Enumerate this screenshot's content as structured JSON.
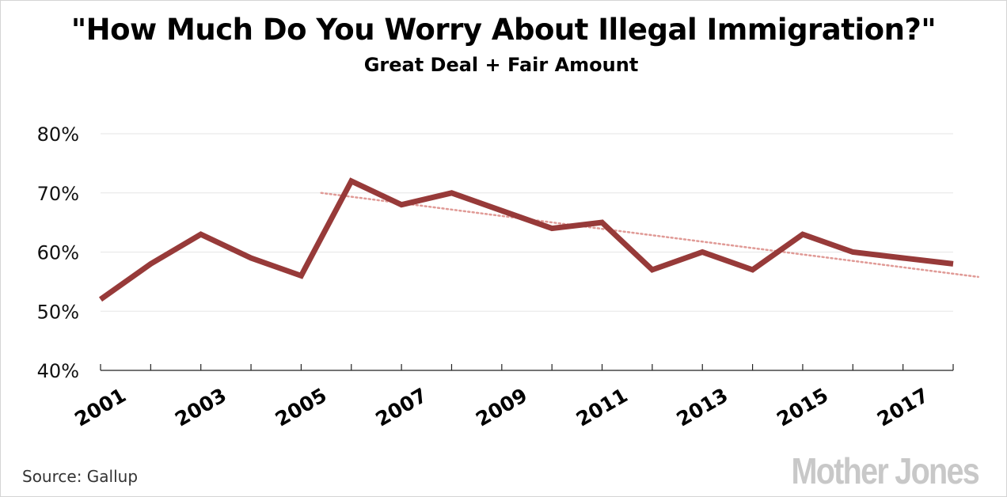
{
  "source": "Source:  Gallup",
  "logo": "Mother Jones",
  "chart_data": {
    "type": "line",
    "title": "\"How Much Do You Worry About Illegal Immigration?\"",
    "subtitle": "Great Deal + Fair Amount",
    "xlabel": "",
    "ylabel": "",
    "x": [
      2001,
      2002,
      2003,
      2004,
      2005,
      2006,
      2007,
      2008,
      2009,
      2010,
      2011,
      2012,
      2013,
      2014,
      2015,
      2016,
      2017,
      2018
    ],
    "series": [
      {
        "values": [
          52,
          58,
          63,
          59,
          56,
          72,
          68,
          70,
          67,
          64,
          65,
          57,
          60,
          57,
          63,
          60,
          59,
          58
        ]
      }
    ],
    "trendline": {
      "x": [
        2005.4,
        2018.5
      ],
      "y": [
        70,
        55.8
      ]
    },
    "xticks": [
      2001,
      2002,
      2003,
      2004,
      2005,
      2006,
      2007,
      2008,
      2009,
      2010,
      2011,
      2012,
      2013,
      2014,
      2015,
      2016,
      2017,
      2018
    ],
    "xtick_labels": [
      "2001",
      "2003",
      "2005",
      "2007",
      "2009",
      "2011",
      "2013",
      "2015",
      "2017"
    ],
    "yticks": [
      40,
      50,
      60,
      70,
      80
    ],
    "ytick_labels": [
      "40%",
      "50%",
      "60%",
      "70%",
      "80%"
    ],
    "ylim": [
      40,
      80
    ],
    "xlim": [
      2001,
      2018
    ],
    "grid": true,
    "legend": "none",
    "colors": {
      "line": "#973a39",
      "trend": "#e09a96",
      "grid": "#e6e6e6",
      "axis": "#222222"
    }
  }
}
